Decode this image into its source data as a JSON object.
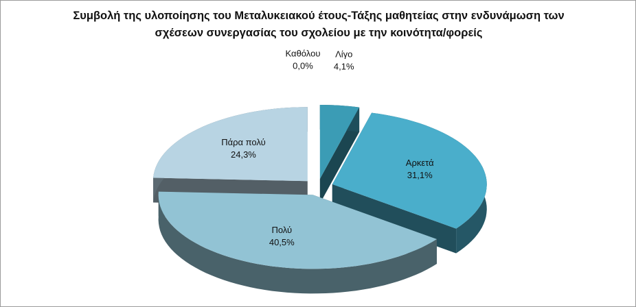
{
  "chart_data": {
    "type": "pie3d",
    "title": "Συμβολή της υλοποίησης του Μεταλυκειακού έτους-Τάξης μαθητείας στην ενδυνάμωση των σχέσεων συνεργασίας του σχολείου με την κοινότητα/φορείς",
    "categories": [
      "Καθόλου",
      "Λίγο",
      "Αρκετά",
      "Πολύ",
      "Πάρα πολύ"
    ],
    "values": [
      0.0,
      4.1,
      31.1,
      40.5,
      24.3
    ],
    "value_labels": [
      "0,0%",
      "4,1%",
      "31,1%",
      "40,5%",
      "24,3%"
    ],
    "colors": [
      "#2f7f95",
      "#3b9cb5",
      "#4aaecb",
      "#92c3d4",
      "#b8d4e3"
    ]
  }
}
